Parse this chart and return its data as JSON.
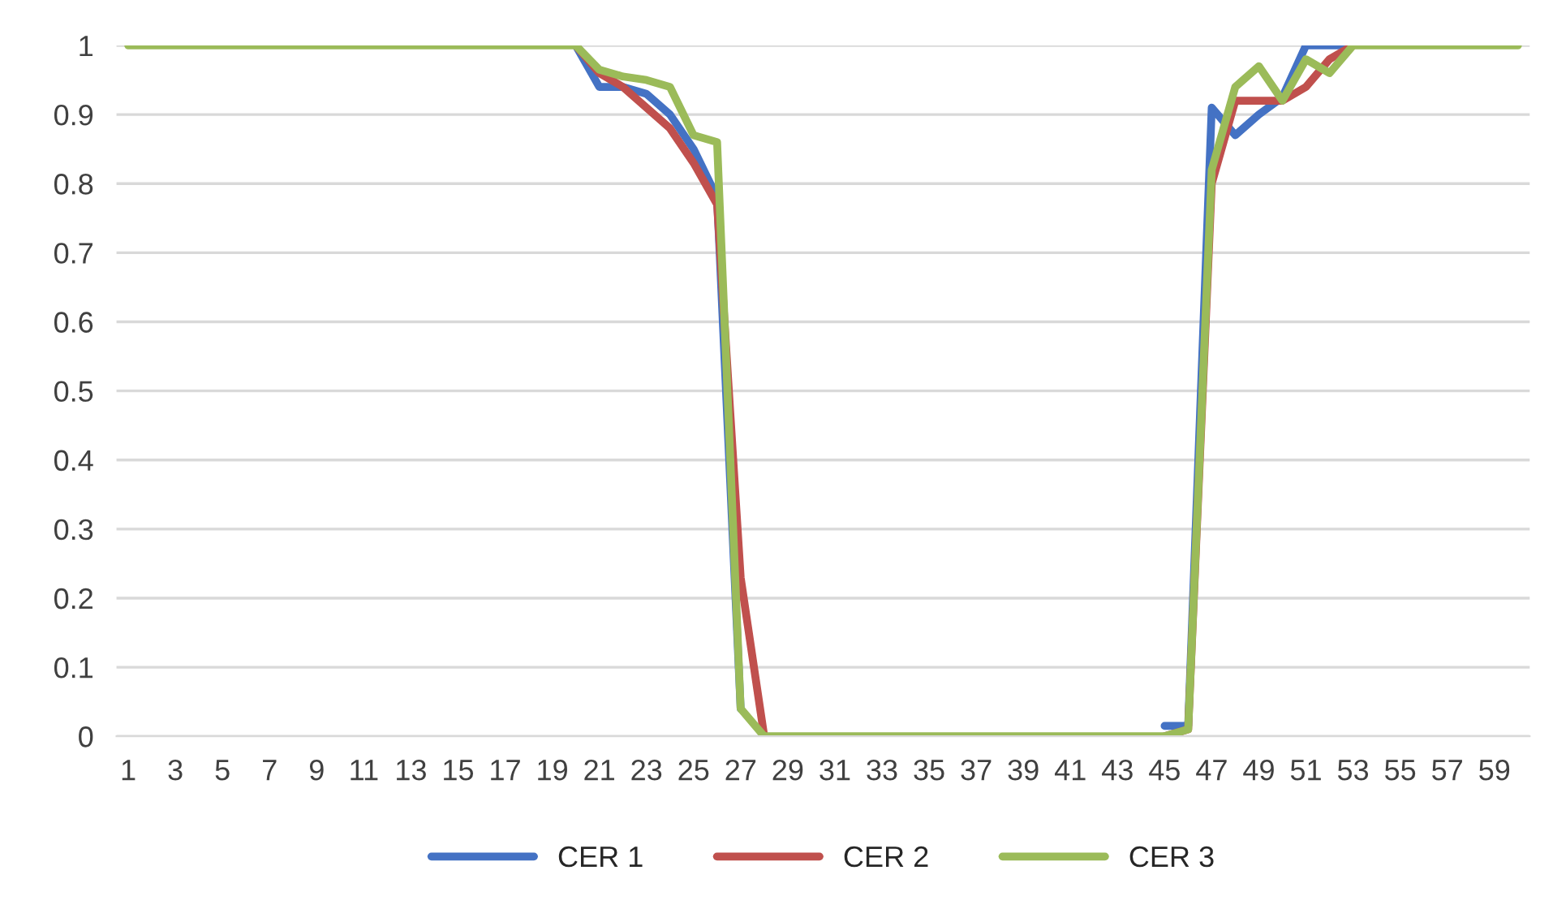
{
  "chart_data": {
    "type": "line",
    "categories": [
      "1",
      null,
      "3",
      null,
      "5",
      null,
      "7",
      null,
      "9",
      null,
      "11",
      null,
      "13",
      null,
      "15",
      null,
      "17",
      null,
      "19",
      null,
      "21",
      null,
      "23",
      null,
      "25",
      null,
      "27",
      null,
      "29",
      null,
      "31",
      null,
      "33",
      null,
      "35",
      null,
      "37",
      null,
      "39",
      null,
      "41",
      null,
      "43",
      null,
      "45",
      null,
      "47",
      null,
      "49",
      null,
      "51",
      null,
      "53",
      null,
      "55",
      null,
      "57",
      null,
      "59",
      null
    ],
    "series": [
      {
        "name": "CER 1",
        "color": "#4472c4",
        "values": [
          null,
          null,
          null,
          null,
          null,
          null,
          null,
          null,
          null,
          null,
          null,
          null,
          null,
          null,
          null,
          null,
          null,
          null,
          null,
          1,
          0.94,
          0.94,
          0.93,
          0.9,
          0.85,
          0.78,
          0.04,
          null,
          null,
          null,
          null,
          null,
          null,
          null,
          null,
          null,
          null,
          null,
          null,
          null,
          null,
          null,
          null,
          null,
          0.015,
          0.015,
          0.91,
          0.87,
          0.9,
          0.925,
          1,
          1,
          1,
          null,
          null,
          null,
          null,
          null,
          null,
          null
        ]
      },
      {
        "name": "CER 2",
        "color": "#c0504d",
        "values": [
          null,
          null,
          null,
          null,
          null,
          null,
          null,
          null,
          null,
          null,
          null,
          null,
          null,
          null,
          null,
          null,
          null,
          null,
          null,
          1,
          0.96,
          0.94,
          0.91,
          0.88,
          0.83,
          0.77,
          0.23,
          0,
          null,
          null,
          null,
          null,
          null,
          null,
          null,
          null,
          null,
          null,
          null,
          null,
          null,
          null,
          null,
          null,
          0,
          0.01,
          0.8,
          0.92,
          0.92,
          0.92,
          0.94,
          0.98,
          1,
          null,
          null,
          null,
          null,
          null,
          null,
          null
        ]
      },
      {
        "name": "CER 3",
        "color": "#9bbb59",
        "values": [
          1,
          1,
          1,
          1,
          1,
          1,
          1,
          1,
          1,
          1,
          1,
          1,
          1,
          1,
          1,
          1,
          1,
          1,
          1,
          1,
          0.965,
          0.955,
          0.95,
          0.94,
          0.87,
          0.86,
          0.04,
          0,
          0,
          0,
          0,
          0,
          0,
          0,
          0,
          0,
          0,
          0,
          0,
          0,
          0,
          0,
          0,
          0,
          0,
          0.01,
          0.82,
          0.94,
          0.97,
          0.92,
          0.98,
          0.96,
          1,
          1,
          1,
          1,
          1,
          1,
          1,
          1
        ]
      }
    ],
    "ylim": [
      0,
      1
    ],
    "yticks": [
      0,
      0.1,
      0.2,
      0.3,
      0.4,
      0.5,
      0.6,
      0.7,
      0.8,
      0.9,
      1
    ],
    "grid": "y",
    "legend": "bottom",
    "marker": "none",
    "line_style": "solid"
  }
}
